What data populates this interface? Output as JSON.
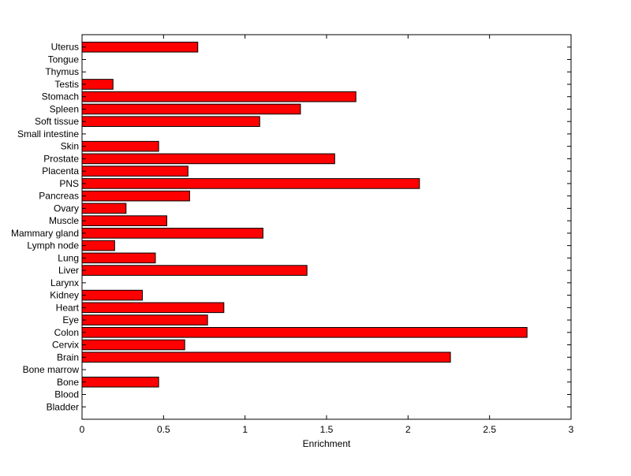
{
  "chart_data": {
    "type": "bar",
    "orientation": "horizontal",
    "title": "",
    "xlabel": "Enrichment",
    "ylabel": "",
    "xlim": [
      0,
      3
    ],
    "x_ticks": [
      0,
      0.5,
      1,
      1.5,
      2,
      2.5,
      3
    ],
    "x_tick_labels": [
      "0",
      "0.5",
      "1",
      "1.5",
      "2",
      "2.5",
      "3"
    ],
    "grid": false,
    "bar_color": "#ff0000",
    "bar_edge_color": "#000000",
    "categories": [
      "Bladder",
      "Blood",
      "Bone",
      "Bone marrow",
      "Brain",
      "Cervix",
      "Colon",
      "Eye",
      "Heart",
      "Kidney",
      "Larynx",
      "Liver",
      "Lung",
      "Lymph node",
      "Mammary gland",
      "Muscle",
      "Ovary",
      "Pancreas",
      "PNS",
      "Placenta",
      "Prostate",
      "Skin",
      "Small intestine",
      "Soft tissue",
      "Spleen",
      "Stomach",
      "Testis",
      "Thymus",
      "Tongue",
      "Uterus"
    ],
    "values": [
      0,
      0,
      0.47,
      0,
      2.26,
      0.63,
      2.73,
      0.77,
      0.87,
      0.37,
      0,
      1.38,
      0.45,
      0.2,
      1.11,
      0.52,
      0.27,
      0.66,
      2.07,
      0.65,
      1.55,
      0.47,
      0,
      1.09,
      1.34,
      1.68,
      0.19,
      0,
      0,
      0.71
    ]
  }
}
